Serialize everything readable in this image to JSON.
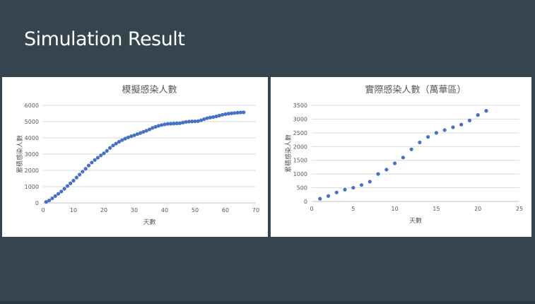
{
  "slide": {
    "title": "Simulation Result"
  },
  "chart_data": [
    {
      "type": "scatter",
      "title": "模擬感染人數",
      "xlabel": "天數",
      "ylabel": "累積感染人數",
      "xlim": [
        0,
        70
      ],
      "ylim": [
        0,
        6000
      ],
      "xticks": [
        0,
        10,
        20,
        30,
        40,
        50,
        60,
        70
      ],
      "yticks": [
        0,
        1000,
        2000,
        3000,
        4000,
        5000,
        6000
      ],
      "grid": true,
      "point_color": "#4472c4",
      "series": [
        {
          "x": [
            1,
            2,
            3,
            4,
            5,
            6,
            7,
            8,
            9,
            10,
            11,
            12,
            13,
            14,
            15,
            16,
            17,
            18,
            19,
            20,
            21,
            22,
            23,
            24,
            25,
            26,
            27,
            28,
            29,
            30,
            31,
            32,
            33,
            34,
            35,
            36,
            37,
            38,
            39,
            40,
            41,
            42,
            43,
            44,
            45,
            46,
            47,
            48,
            49,
            50,
            51,
            52,
            53,
            54,
            55,
            56,
            57,
            58,
            59,
            60,
            61,
            62,
            63,
            64,
            65,
            66
          ],
          "y": [
            60,
            150,
            280,
            420,
            560,
            700,
            870,
            1040,
            1200,
            1370,
            1560,
            1740,
            1920,
            2100,
            2300,
            2480,
            2640,
            2780,
            2920,
            3050,
            3200,
            3380,
            3530,
            3650,
            3760,
            3860,
            3950,
            4030,
            4100,
            4160,
            4230,
            4300,
            4370,
            4440,
            4520,
            4610,
            4680,
            4740,
            4790,
            4830,
            4860,
            4870,
            4880,
            4890,
            4900,
            4940,
            4980,
            5000,
            5010,
            5020,
            5030,
            5080,
            5150,
            5210,
            5250,
            5280,
            5320,
            5370,
            5420,
            5460,
            5490,
            5510,
            5530,
            5550,
            5560,
            5570
          ]
        }
      ]
    },
    {
      "type": "scatter",
      "title": "實際感染人數（萬華區）",
      "xlabel": "天數",
      "ylabel": "累積感染人數",
      "xlim": [
        0,
        25
      ],
      "ylim": [
        0,
        3500
      ],
      "xticks": [
        0,
        5,
        10,
        15,
        20,
        25
      ],
      "yticks": [
        0,
        500,
        1000,
        1500,
        2000,
        2500,
        3000,
        3500
      ],
      "grid": true,
      "point_color": "#4472c4",
      "series": [
        {
          "x": [
            1,
            2,
            3,
            4,
            5,
            6,
            7,
            8,
            9,
            10,
            11,
            12,
            13,
            14,
            15,
            16,
            17,
            18,
            19,
            20,
            21
          ],
          "y": [
            100,
            200,
            330,
            430,
            500,
            600,
            720,
            1000,
            1160,
            1390,
            1600,
            1900,
            2150,
            2350,
            2500,
            2600,
            2700,
            2800,
            2950,
            3150,
            3300
          ]
        }
      ]
    }
  ]
}
